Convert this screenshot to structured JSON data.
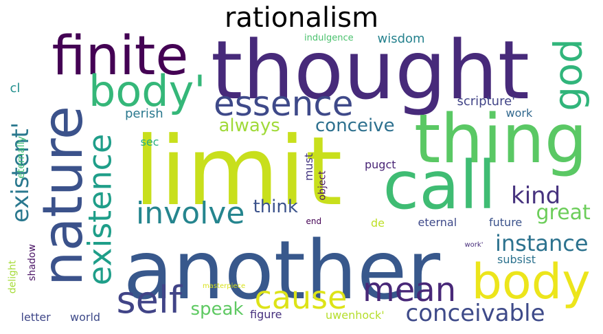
{
  "title": "rationalism",
  "words": [
    {
      "text": "limit",
      "color": "#c8df1c",
      "vertical": false
    },
    {
      "text": "another",
      "color": "#38588c",
      "vertical": false
    },
    {
      "text": "thought",
      "color": "#472a7a",
      "vertical": false
    },
    {
      "text": "thing",
      "color": "#5ac864",
      "vertical": false
    },
    {
      "text": "nature",
      "color": "#3b528b",
      "vertical": true
    },
    {
      "text": "call",
      "color": "#3fbc73",
      "vertical": false
    },
    {
      "text": "finite",
      "color": "#440154",
      "vertical": false
    },
    {
      "text": "body'",
      "color": "#35b779",
      "vertical": false
    },
    {
      "text": "body",
      "color": "#ece51b",
      "vertical": false
    },
    {
      "text": "existence",
      "color": "#1f9e89",
      "vertical": true
    },
    {
      "text": "essence",
      "color": "#3e4989",
      "vertical": false
    },
    {
      "text": "god",
      "color": "#31b57b",
      "vertical": true
    },
    {
      "text": "self",
      "color": "#414487",
      "vertical": false
    },
    {
      "text": "cause",
      "color": "#dde318",
      "vertical": false
    },
    {
      "text": "mean",
      "color": "#482878",
      "vertical": false
    },
    {
      "text": "involve",
      "color": "#25858e",
      "vertical": false
    },
    {
      "text": "existent'",
      "color": "#2a788e",
      "vertical": true
    },
    {
      "text": "conceivable",
      "color": "#3e4a89",
      "vertical": false
    },
    {
      "text": "kind",
      "color": "#46327e",
      "vertical": false
    },
    {
      "text": "instance",
      "color": "#2c728e",
      "vertical": false
    },
    {
      "text": "great",
      "color": "#6ccd5a",
      "vertical": false
    },
    {
      "text": "think",
      "color": "#3b528b",
      "vertical": false
    },
    {
      "text": "speak",
      "color": "#5ec962",
      "vertical": false
    },
    {
      "text": "conceive",
      "color": "#2d708e",
      "vertical": false
    },
    {
      "text": "always",
      "color": "#a0da39",
      "vertical": false
    },
    {
      "text": "scripture'",
      "color": "#414487",
      "vertical": false
    },
    {
      "text": "work",
      "color": "#31688e",
      "vertical": false
    },
    {
      "text": "future",
      "color": "#3b528b",
      "vertical": false
    },
    {
      "text": "subsist",
      "color": "#2c728e",
      "vertical": false
    },
    {
      "text": "pugct",
      "color": "#482475",
      "vertical": false
    },
    {
      "text": "must",
      "color": "#453781",
      "vertical": true
    },
    {
      "text": "object",
      "color": "#471365",
      "vertical": true
    },
    {
      "text": "wisdom",
      "color": "#26828e",
      "vertical": false
    },
    {
      "text": "perish",
      "color": "#2a788e",
      "vertical": false
    },
    {
      "text": "sec",
      "color": "#29af7f",
      "vertical": false
    },
    {
      "text": "eternally",
      "color": "#3fbc73",
      "vertical": true
    },
    {
      "text": "cl",
      "color": "#218f8d",
      "vertical": false
    },
    {
      "text": "delight",
      "color": "#a5db36",
      "vertical": true
    },
    {
      "text": "shadow",
      "color": "#471063",
      "vertical": true
    },
    {
      "text": "letter",
      "color": "#3f4788",
      "vertical": false
    },
    {
      "text": "world",
      "color": "#3e4a89",
      "vertical": false
    },
    {
      "text": "figure",
      "color": "#46307e",
      "vertical": false
    },
    {
      "text": "uwenhock'",
      "color": "#b5de2b",
      "vertical": false
    },
    {
      "text": "eternal",
      "color": "#3e4989",
      "vertical": false
    },
    {
      "text": "de",
      "color": "#bddf26",
      "vertical": false
    },
    {
      "text": "end",
      "color": "#440154",
      "vertical": false
    },
    {
      "text": "work'",
      "color": "#472d7b",
      "vertical": false
    },
    {
      "text": "indulgence",
      "color": "#4ac16d",
      "vertical": false
    },
    {
      "text": "masterpiece",
      "color": "#d8e219",
      "vertical": false
    }
  ]
}
